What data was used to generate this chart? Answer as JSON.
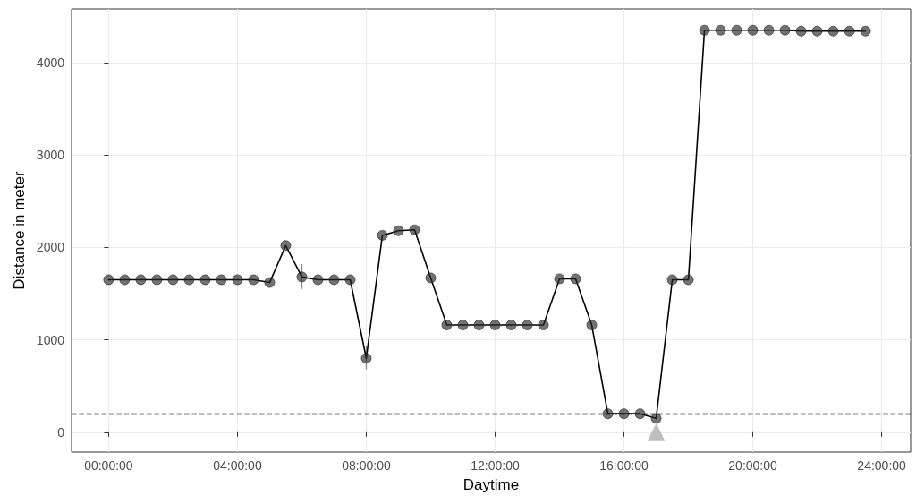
{
  "chart_data": {
    "type": "line",
    "xlabel": "Daytime",
    "ylabel": "Distance in meter",
    "xlim": [
      -1.15,
      24.9
    ],
    "ylim": [
      -215,
      4580
    ],
    "xticks": [
      {
        "value": 0,
        "label": "00:00:00"
      },
      {
        "value": 4,
        "label": "04:00:00"
      },
      {
        "value": 8,
        "label": "08:00:00"
      },
      {
        "value": 12,
        "label": "12:00:00"
      },
      {
        "value": 16,
        "label": "16:00:00"
      },
      {
        "value": 20,
        "label": "20:00:00"
      },
      {
        "value": 24,
        "label": "24:00:00"
      }
    ],
    "yticks": [
      0,
      1000,
      2000,
      3000,
      4000
    ],
    "grid": true,
    "legend": false,
    "series": [
      {
        "color": "#000000",
        "marker": "circle",
        "line_style": "solid",
        "x": [
          0,
          0.5,
          1,
          1.5,
          2,
          2.5,
          3,
          3.5,
          4,
          4.5,
          5,
          5.5,
          6,
          6.5,
          7,
          7.5,
          8,
          8.5,
          9,
          9.5,
          10,
          10.5,
          11,
          11.5,
          12,
          12.5,
          13,
          13.5,
          14,
          14.5,
          15,
          15.5,
          16,
          16.5,
          17,
          17.5,
          18,
          18.5,
          19,
          19.5,
          20,
          20.5,
          21,
          21.5,
          22,
          22.5,
          23,
          23.5
        ],
        "values": [
          1650,
          1650,
          1650,
          1650,
          1650,
          1650,
          1650,
          1650,
          1650,
          1650,
          1620,
          2020,
          1680,
          1650,
          1650,
          1650,
          800,
          2130,
          2180,
          2190,
          1670,
          1160,
          1160,
          1160,
          1160,
          1160,
          1160,
          1160,
          1660,
          1660,
          1160,
          200,
          200,
          200,
          150,
          1650,
          1650,
          4350,
          4350,
          4350,
          4350,
          4350,
          4350,
          4340,
          4340,
          4340,
          4340,
          4340
        ],
        "errors": [
          null,
          null,
          null,
          null,
          null,
          null,
          null,
          null,
          null,
          null,
          null,
          null,
          [
            1550,
            1820
          ],
          null,
          null,
          null,
          [
            680,
            930
          ],
          null,
          null,
          null,
          null,
          null,
          null,
          null,
          null,
          null,
          null,
          null,
          null,
          null,
          null,
          null,
          null,
          null,
          null,
          null,
          null,
          null,
          null,
          null,
          null,
          null,
          null,
          null,
          null,
          null,
          null,
          null
        ]
      },
      {
        "type": "scatter",
        "color": "#bebebe",
        "marker": "triangle",
        "x": [
          17
        ],
        "values": [
          0
        ]
      }
    ],
    "ref_lines": [
      {
        "axis": "y",
        "value": 200,
        "color": "#000000",
        "line_style": "dashed"
      }
    ]
  }
}
